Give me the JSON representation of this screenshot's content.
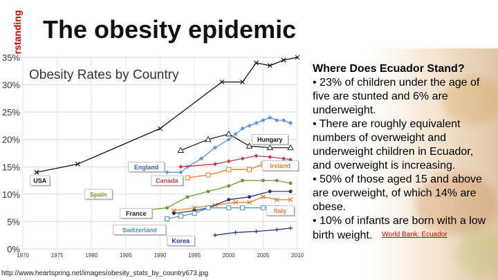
{
  "slide": {
    "side_label": "Understanding",
    "title": "The obesity epidemic",
    "source_url": "http://www.heartspring.net/images/obesity_stats_by_country673.jpg"
  },
  "panel": {
    "heading": "Where Does Ecuador Stand?",
    "bullets": [
      "• 23% of children under the age of five are stunted and 6% are underweight.",
      "• There are roughly equivalent numbers of overweight and underweight children in Ecuador, and overweight is increasing.",
      "• 50% of those aged 15 and above are overweight, of which 14% are obese.",
      "• 10% of infants are born with a low birth weight."
    ],
    "reference_link": "World Bank: Ecuador"
  },
  "chart_data": {
    "type": "line",
    "title": "Obesity Rates by Country",
    "xlabel": "",
    "ylabel": "",
    "xlim": [
      1970,
      2010
    ],
    "ylim": [
      0,
      35
    ],
    "xticks": [
      1970,
      1975,
      1980,
      1985,
      1990,
      1995,
      2000,
      2005,
      2010
    ],
    "yticks": [
      "0%",
      "5%",
      "10%",
      "15%",
      "20%",
      "25%",
      "30%",
      "35%"
    ],
    "grid": true,
    "series": [
      {
        "name": "USA",
        "color": "#111111",
        "marker": "x",
        "points": [
          [
            1972,
            14
          ],
          [
            1978,
            15.5
          ],
          [
            1990,
            22
          ],
          [
            1999,
            30.5
          ],
          [
            2002,
            30.5
          ],
          [
            2004,
            34
          ],
          [
            2006,
            33.5
          ],
          [
            2008,
            34.5
          ],
          [
            2010,
            35
          ]
        ]
      },
      {
        "name": "Hungary",
        "color": "#222222",
        "marker": "triangle",
        "points": [
          [
            1993,
            18
          ],
          [
            1997,
            20
          ],
          [
            2000,
            21
          ],
          [
            2003,
            18.8
          ],
          [
            2006,
            18.5
          ],
          [
            2009,
            18.5
          ]
        ]
      },
      {
        "name": "England",
        "color": "#5a8fd0",
        "marker": "star",
        "points": [
          [
            1991,
            14
          ],
          [
            1993,
            14
          ],
          [
            1994,
            15
          ],
          [
            1996,
            16.5
          ],
          [
            1998,
            18.5
          ],
          [
            2000,
            20
          ],
          [
            2001,
            21
          ],
          [
            2002,
            22
          ],
          [
            2003,
            22.5
          ],
          [
            2004,
            23
          ],
          [
            2005,
            23.5
          ],
          [
            2006,
            24
          ],
          [
            2007,
            23.5
          ],
          [
            2008,
            23.5
          ],
          [
            2009,
            23
          ]
        ]
      },
      {
        "name": "Ireland",
        "color": "#c04040",
        "marker": "diamond",
        "points": [
          [
            1993,
            15
          ],
          [
            1998,
            15.5
          ],
          [
            2000,
            16
          ],
          [
            2002,
            16.5
          ],
          [
            2004,
            17
          ],
          [
            2006,
            16.8
          ],
          [
            2008,
            16.5
          ],
          [
            2009,
            16.3
          ]
        ]
      },
      {
        "name": "Canada",
        "color": "#e07b2a",
        "marker": "square",
        "points": [
          [
            1994,
            13
          ],
          [
            1997,
            13.5
          ],
          [
            2000,
            14.5
          ],
          [
            2003,
            14.5
          ],
          [
            2005,
            15.5
          ],
          [
            2007,
            15.5
          ],
          [
            2009,
            15.3
          ]
        ]
      },
      {
        "name": "Spain",
        "color": "#6a9a3a",
        "marker": "circle",
        "points": [
          [
            1987,
            7
          ],
          [
            1991,
            7.5
          ],
          [
            1994,
            9.5
          ],
          [
            1997,
            10.5
          ],
          [
            2000,
            11.5
          ],
          [
            2002,
            12.5
          ],
          [
            2005,
            12.5
          ],
          [
            2007,
            12.5
          ],
          [
            2009,
            12
          ]
        ]
      },
      {
        "name": "Italy",
        "color": "#e08030",
        "marker": "x",
        "points": [
          [
            1992,
            7
          ],
          [
            1995,
            7.5
          ],
          [
            1998,
            8
          ],
          [
            2001,
            8.5
          ],
          [
            2003,
            8.5
          ],
          [
            2005,
            9.5
          ],
          [
            2007,
            9
          ],
          [
            2009,
            9
          ]
        ]
      },
      {
        "name": "France",
        "color": "#333366",
        "marker": "circle",
        "points": [
          [
            1992,
            6.5
          ],
          [
            1995,
            7
          ],
          [
            1997,
            7.5
          ],
          [
            2000,
            9
          ],
          [
            2003,
            9.5
          ],
          [
            2006,
            10.5
          ],
          [
            2009,
            10.5
          ]
        ]
      },
      {
        "name": "Switzerland",
        "color": "#4a90c0",
        "marker": "square",
        "points": [
          [
            1991,
            5.5
          ],
          [
            1993,
            6
          ],
          [
            1995,
            6.5
          ],
          [
            1997,
            7.5
          ],
          [
            2000,
            7.5
          ],
          [
            2002,
            7.5
          ],
          [
            2005,
            7.5
          ],
          [
            2007,
            7.5
          ]
        ]
      },
      {
        "name": "Korea",
        "color": "#1a3a8a",
        "marker": "cross",
        "points": [
          [
            1998,
            2.5
          ],
          [
            2001,
            3
          ],
          [
            2004,
            3.2
          ],
          [
            2007,
            3.5
          ],
          [
            2009,
            3.8
          ]
        ]
      }
    ],
    "labels": [
      {
        "text": "USA",
        "x": 1972.5,
        "y": 12.5,
        "fill": "#ffffff",
        "color": "#111111"
      },
      {
        "text": "England",
        "x": 1988,
        "y": 15,
        "fill": "#ffffff",
        "color": "#3a5fa0"
      },
      {
        "text": "Hungary",
        "x": 2006,
        "y": 20,
        "fill": "#ffffff",
        "color": "#111111"
      },
      {
        "text": "Ireland",
        "x": 2007.5,
        "y": 15.2,
        "fill": "#ffffff",
        "color": "#e08030"
      },
      {
        "text": "Canada",
        "x": 1991,
        "y": 12.5,
        "fill": "#ffffff",
        "color": "#c04040"
      },
      {
        "text": "Spain",
        "x": 1981,
        "y": 10,
        "fill": "#ffffff",
        "color": "#6a9a3a"
      },
      {
        "text": "France",
        "x": 1986.5,
        "y": 6.5,
        "fill": "#ffffff",
        "color": "#222222"
      },
      {
        "text": "Italy",
        "x": 2007.5,
        "y": 7,
        "fill": "#ffffff",
        "color": "#e08030"
      },
      {
        "text": "Switzerland",
        "x": 1987,
        "y": 3.5,
        "fill": "#ffffff",
        "color": "#4a90c0"
      },
      {
        "text": "Korea",
        "x": 1993,
        "y": 1.5,
        "fill": "#ffffff",
        "color": "#1a3a8a"
      }
    ]
  }
}
